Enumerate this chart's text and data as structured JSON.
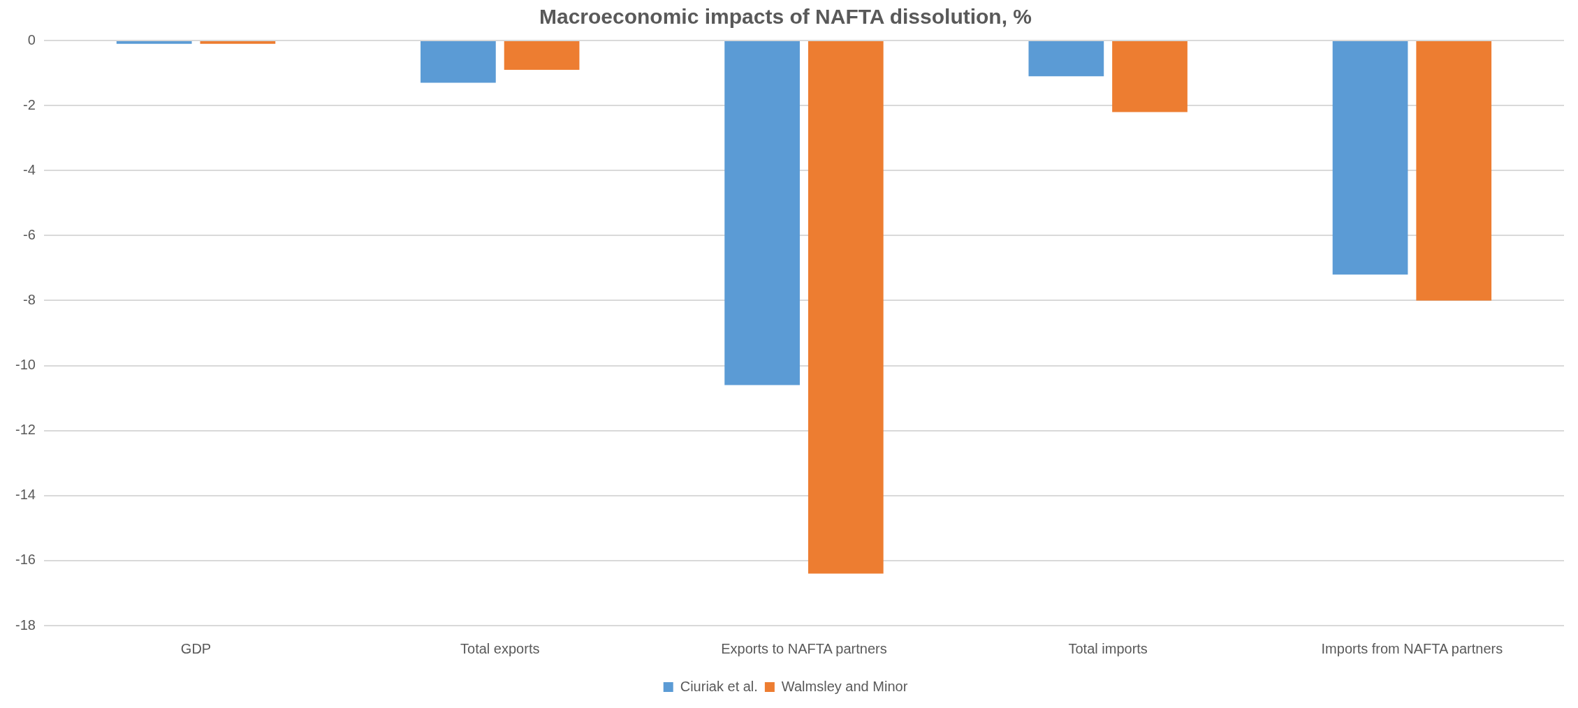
{
  "chart_data": {
    "type": "bar",
    "title": "Macroeconomic impacts of NAFTA dissolution, %",
    "categories": [
      "GDP",
      "Total exports",
      "Exports to NAFTA partners",
      "Total imports",
      "Imports from NAFTA partners"
    ],
    "series": [
      {
        "name": "Ciuriak et al.",
        "color": "#5b9bd5",
        "values": [
          -0.1,
          -1.3,
          -10.6,
          -1.1,
          -7.2
        ]
      },
      {
        "name": "Walmsley and Minor",
        "color": "#ed7d31",
        "values": [
          -0.1,
          -0.9,
          -16.4,
          -2.2,
          -8.0
        ]
      }
    ],
    "ylim": [
      -18,
      0
    ],
    "yticks": [
      -18,
      -16,
      -14,
      -12,
      -10,
      -8,
      -6,
      -4,
      -2,
      0
    ],
    "grid": "y",
    "legend": "bottom"
  }
}
